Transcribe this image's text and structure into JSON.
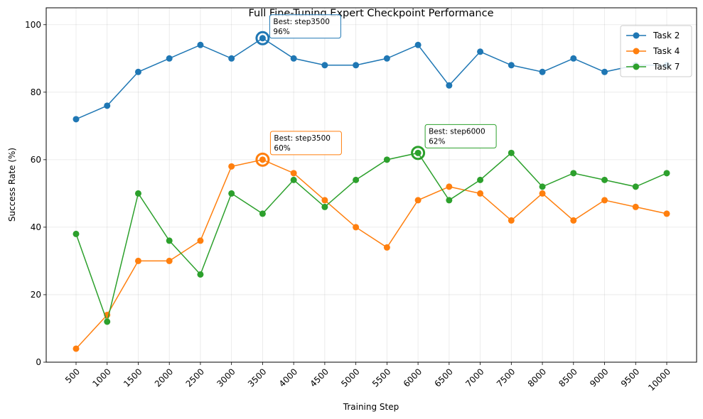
{
  "chart_data": {
    "type": "line",
    "title": "Full Fine-Tuning Expert Checkpoint Performance",
    "xlabel": "Training Step",
    "ylabel": "Success Rate (%)",
    "categories": [
      "500",
      "1000",
      "1500",
      "2000",
      "2500",
      "3000",
      "3500",
      "4000",
      "4500",
      "5000",
      "5500",
      "6000",
      "6500",
      "7000",
      "7500",
      "8000",
      "8500",
      "9000",
      "9500",
      "10000"
    ],
    "ylim": [
      0,
      105
    ],
    "yticks": [
      "0",
      "20",
      "40",
      "60",
      "80",
      "100"
    ],
    "grid": true,
    "legend_position": "top-right",
    "series": [
      {
        "name": "Task 2",
        "color": "#1f77b4",
        "values": [
          72,
          76,
          86,
          90,
          94,
          90,
          96,
          90,
          88,
          88,
          90,
          94,
          82,
          92,
          88,
          86,
          90,
          86,
          88,
          88
        ]
      },
      {
        "name": "Task 4",
        "color": "#ff7f0e",
        "values": [
          4,
          14,
          30,
          30,
          36,
          58,
          60,
          56,
          48,
          40,
          34,
          48,
          52,
          50,
          42,
          50,
          42,
          48,
          46,
          44
        ]
      },
      {
        "name": "Task 7",
        "color": "#2ca02c",
        "values": [
          38,
          12,
          50,
          36,
          26,
          50,
          44,
          54,
          46,
          54,
          60,
          62,
          48,
          54,
          62,
          52,
          56,
          54,
          52,
          56
        ]
      }
    ],
    "annotations": [
      {
        "series": 0,
        "category": "3500",
        "value": 96,
        "line1": "Best: step3500",
        "line2": "96%"
      },
      {
        "series": 1,
        "category": "3500",
        "value": 60,
        "line1": "Best: step3500",
        "line2": "60%"
      },
      {
        "series": 2,
        "category": "6000",
        "value": 62,
        "line1": "Best: step6000",
        "line2": "62%"
      }
    ]
  }
}
